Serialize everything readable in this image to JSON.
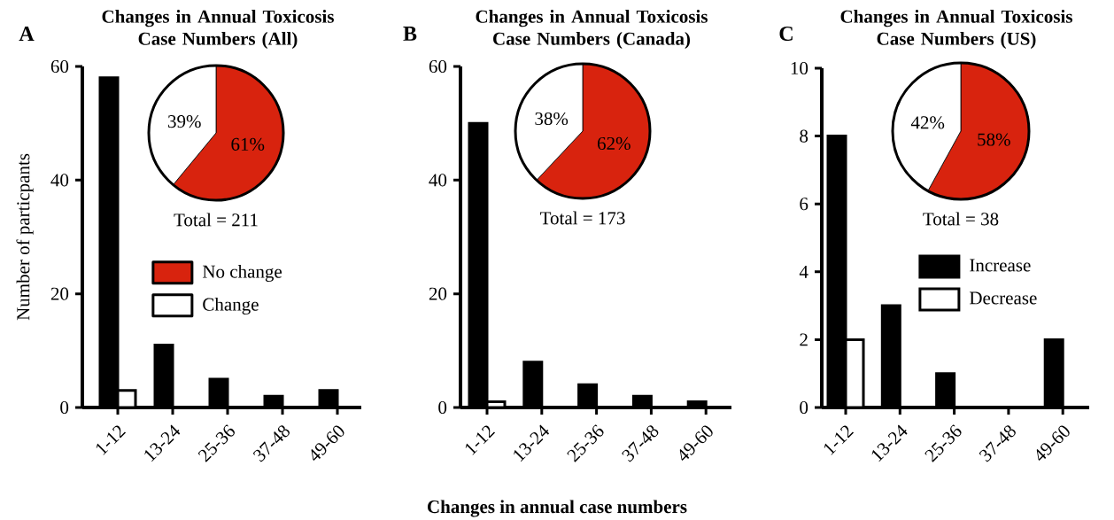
{
  "chart_data": [
    {
      "type": "bar",
      "title": "Changes in Annual Toxicosis Case Numbers (All)",
      "ylabel": "Number of particpants",
      "annotations": [
        "A"
      ],
      "categories": [
        "1-12",
        "13-24",
        "25-36",
        "37-48",
        "49-60"
      ],
      "ylim": [
        0,
        60
      ],
      "yticks": [
        0,
        20,
        40,
        60
      ],
      "series": [
        {
          "color": "#000000",
          "values": [
            58,
            11,
            5,
            2,
            3
          ]
        },
        {
          "color": "#ffffff",
          "values": [
            3,
            0,
            0,
            0,
            0
          ]
        }
      ]
    },
    {
      "type": "pie",
      "categories": [
        "No change",
        "Change"
      ],
      "values": [
        61,
        39
      ],
      "colors": [
        "#d8230e",
        "#ffffff"
      ],
      "value_labels": [
        "61%",
        "39%"
      ],
      "annotations": [
        "Total = 211"
      ],
      "legend": "bottom"
    },
    {
      "type": "bar",
      "title": "Changes in Annual Toxicosis Case Numbers (Canada)",
      "xlabel": "Changes in annual case numbers",
      "annotations": [
        "B"
      ],
      "categories": [
        "1-12",
        "13-24",
        "25-36",
        "37-48",
        "49-60"
      ],
      "ylim": [
        0,
        60
      ],
      "yticks": [
        0,
        20,
        40,
        60
      ],
      "series": [
        {
          "color": "#000000",
          "values": [
            50,
            8,
            4,
            2,
            1
          ]
        },
        {
          "color": "#ffffff",
          "values": [
            1,
            0,
            0,
            0,
            0
          ]
        }
      ]
    },
    {
      "type": "pie",
      "categories": [
        null,
        null
      ],
      "values": [
        62,
        38
      ],
      "colors": [
        "#d8230e",
        "#ffffff"
      ],
      "value_labels": [
        "62%",
        "38%"
      ],
      "annotations": [
        "Total = 173"
      ]
    },
    {
      "type": "bar",
      "title": "Changes in Annual Toxicosis Case Numbers (US)",
      "annotations": [
        "C"
      ],
      "categories": [
        "1-12",
        "13-24",
        "25-36",
        "37-48",
        "49-60"
      ],
      "ylim": [
        0,
        10
      ],
      "yticks": [
        0,
        2,
        4,
        6,
        8,
        10
      ],
      "legend": "right",
      "series": [
        {
          "name": "Increase",
          "color": "#000000",
          "values": [
            8,
            3,
            1,
            0,
            2
          ]
        },
        {
          "name": "Decrease",
          "color": "#ffffff",
          "values": [
            2,
            0,
            0,
            0,
            0
          ]
        }
      ]
    },
    {
      "type": "pie",
      "categories": [
        null,
        null
      ],
      "values": [
        58,
        42
      ],
      "colors": [
        "#d8230e",
        "#ffffff"
      ],
      "value_labels": [
        "58%",
        "42%"
      ],
      "annotations": [
        "Total = 38"
      ]
    }
  ]
}
